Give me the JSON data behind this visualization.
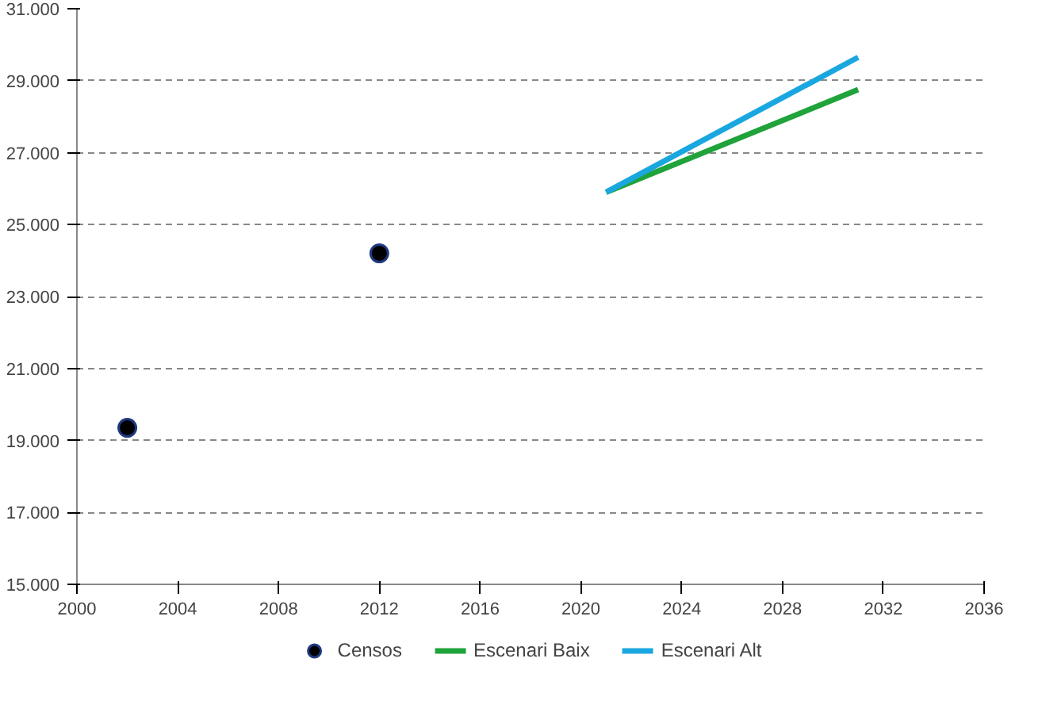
{
  "chart_data": {
    "type": "line",
    "xlim": [
      2000,
      2036
    ],
    "xticks": [
      2000,
      2004,
      2008,
      2012,
      2016,
      2020,
      2024,
      2028,
      2032,
      2036
    ],
    "ylim": [
      15000,
      31000
    ],
    "yticks": [
      {
        "value": 15000,
        "label": "15.000"
      },
      {
        "value": 17000,
        "label": "17.000"
      },
      {
        "value": 19000,
        "label": "19.000"
      },
      {
        "value": 21000,
        "label": "21.000"
      },
      {
        "value": 23000,
        "label": "23.000"
      },
      {
        "value": 25000,
        "label": "25.000"
      },
      {
        "value": 27000,
        "label": "27.000"
      },
      {
        "value": 29000,
        "label": "29.000"
      },
      {
        "value": 31000,
        "label": "31.000"
      }
    ],
    "grid": "y",
    "legend": "bottom",
    "series": [
      {
        "name": "Censos",
        "type": "scatter",
        "marker": "circle",
        "color": "#000000",
        "x": [
          2002,
          2012
        ],
        "values": [
          19350,
          24200
        ]
      },
      {
        "name": "Escenari Baix",
        "color": "#1fa33a",
        "x": [
          2021,
          2031
        ],
        "values": [
          25900,
          28750
        ]
      },
      {
        "name": "Escenari Alt",
        "color": "#1aa7e0",
        "x": [
          2021,
          2031
        ],
        "values": [
          25900,
          29650
        ]
      }
    ]
  }
}
